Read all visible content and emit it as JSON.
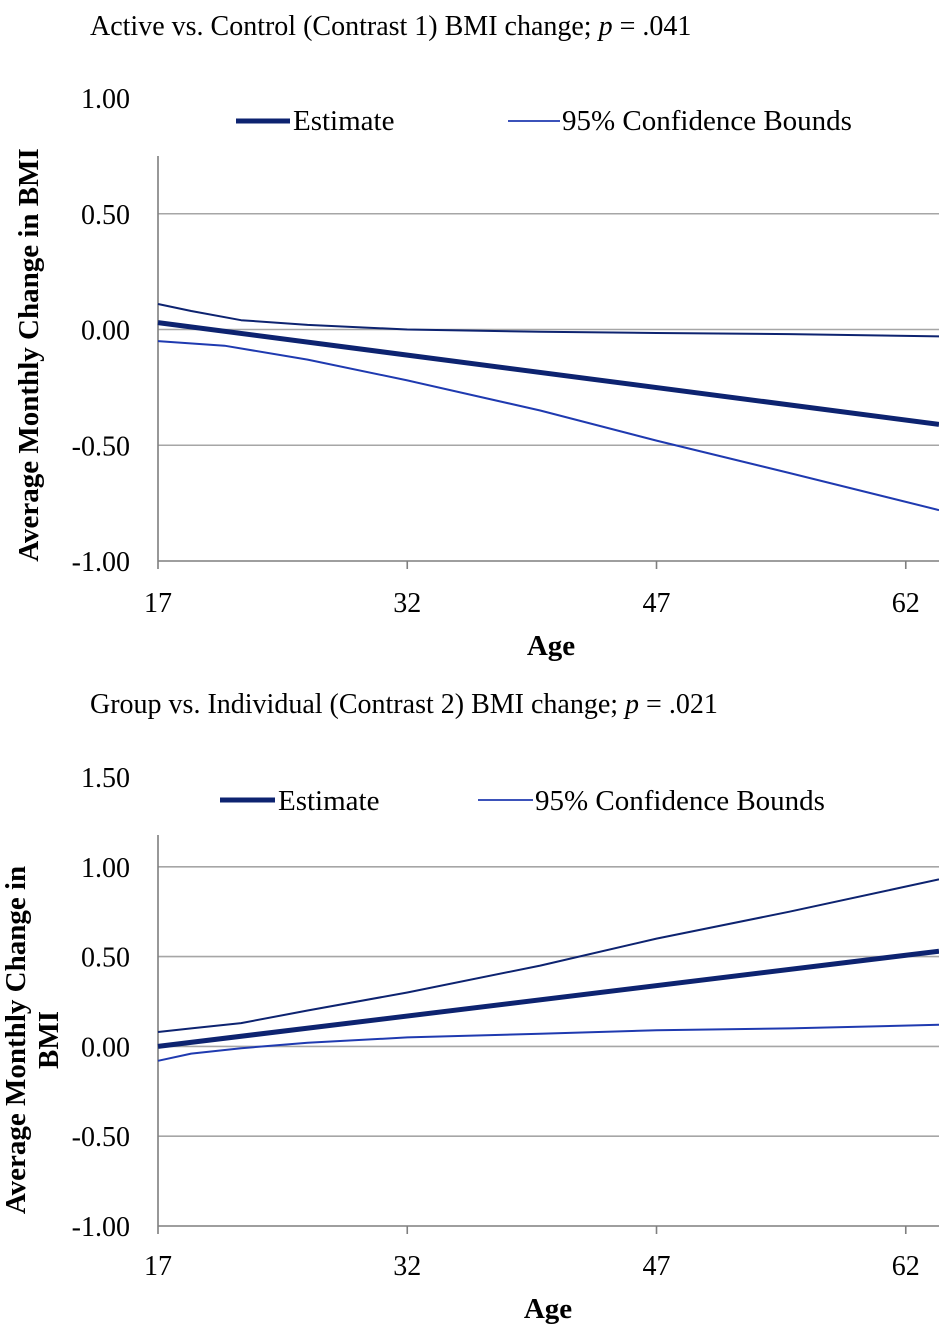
{
  "chart_data": [
    {
      "type": "line",
      "title_prefix": "Active vs. Control (Contrast 1) BMI change; ",
      "title_p": "p",
      "title_suffix": " = .041",
      "xlabel": "Age",
      "ylabel_lines": [
        "Average Monthly Change in BMI"
      ],
      "xticks": [
        17,
        32,
        47,
        62
      ],
      "xlim": [
        17,
        64
      ],
      "yticks": [
        "1.00",
        "0.50",
        "0.00",
        "-0.50",
        "-1.00"
      ],
      "ylim": [
        -1.0,
        1.0
      ],
      "grid": true,
      "legend_position": "top",
      "legend": [
        "Estimate",
        "95% Confidence Bounds"
      ],
      "series": [
        {
          "name": "Estimate",
          "x": [
            17,
            64
          ],
          "y": [
            0.03,
            -0.41
          ]
        },
        {
          "name": "95% Confidence Bounds",
          "x": [
            17,
            19,
            22,
            26,
            32,
            40,
            47,
            55,
            64
          ],
          "y": [
            0.11,
            0.08,
            0.04,
            0.02,
            0.0,
            -0.01,
            -0.015,
            -0.02,
            -0.03
          ]
        },
        {
          "name": "95% Confidence Bounds",
          "x": [
            17,
            21,
            26,
            32,
            40,
            47,
            55,
            64
          ],
          "y": [
            -0.05,
            -0.07,
            -0.13,
            -0.22,
            -0.35,
            -0.48,
            -0.62,
            -0.78
          ]
        }
      ]
    },
    {
      "type": "line",
      "title_prefix": "Group vs. Individual (Contrast 2) BMI change; ",
      "title_p": "p",
      "title_suffix": " = .021",
      "xlabel": "Age",
      "ylabel_lines": [
        "Average Monthly Change in",
        "BMI"
      ],
      "xticks": [
        17,
        32,
        47,
        62
      ],
      "xlim": [
        17,
        64
      ],
      "yticks": [
        "1.50",
        "1.00",
        "0.50",
        "0.00",
        "-0.50",
        "-1.00"
      ],
      "ylim": [
        -1.0,
        1.5
      ],
      "grid": true,
      "legend_position": "top",
      "legend": [
        "Estimate",
        "95% Confidence Bounds"
      ],
      "series": [
        {
          "name": "Estimate",
          "x": [
            17,
            64
          ],
          "y": [
            0.0,
            0.53
          ]
        },
        {
          "name": "95% Confidence Bounds",
          "x": [
            17,
            19,
            22,
            26,
            32,
            40,
            47,
            55,
            64
          ],
          "y": [
            0.08,
            0.1,
            0.13,
            0.2,
            0.3,
            0.45,
            0.6,
            0.75,
            0.93
          ]
        },
        {
          "name": "95% Confidence Bounds",
          "x": [
            17,
            19,
            22,
            26,
            32,
            40,
            47,
            55,
            64
          ],
          "y": [
            -0.08,
            -0.04,
            -0.01,
            0.02,
            0.05,
            0.07,
            0.09,
            0.1,
            0.12
          ]
        }
      ]
    }
  ],
  "colors": {
    "series": "#0d2370",
    "grid": "#a6a6a6",
    "axis": "#7f7f7f"
  }
}
